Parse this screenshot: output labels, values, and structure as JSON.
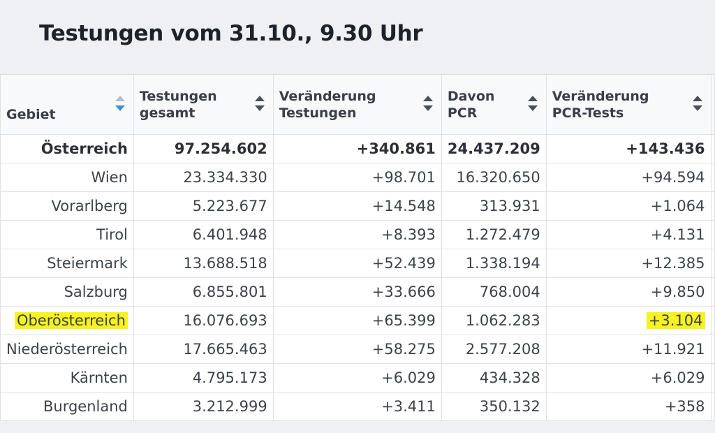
{
  "page": {
    "title": "Testungen vom 31.10., 9.30 Uhr"
  },
  "table": {
    "headers": [
      "Gebiet",
      "Testungen gesamt",
      "Veränderung Testungen",
      "Davon PCR",
      "Veränderung PCR-Tests"
    ],
    "active_sort_column": "Gebiet",
    "highlight_color": "#f7f320",
    "rows": [
      {
        "gebiet": "Österreich",
        "gesamt": "97.254.602",
        "veraenderung": "+340.861",
        "pcr": "24.437.209",
        "pcr_veraenderung": "+143.436",
        "bold": true
      },
      {
        "gebiet": "Wien",
        "gesamt": "23.334.330",
        "veraenderung": "+98.701",
        "pcr": "16.320.650",
        "pcr_veraenderung": "+94.594"
      },
      {
        "gebiet": "Vorarlberg",
        "gesamt": "5.223.677",
        "veraenderung": "+14.548",
        "pcr": "313.931",
        "pcr_veraenderung": "+1.064"
      },
      {
        "gebiet": "Tirol",
        "gesamt": "6.401.948",
        "veraenderung": "+8.393",
        "pcr": "1.272.479",
        "pcr_veraenderung": "+4.131"
      },
      {
        "gebiet": "Steiermark",
        "gesamt": "13.688.518",
        "veraenderung": "+52.439",
        "pcr": "1.338.194",
        "pcr_veraenderung": "+12.385"
      },
      {
        "gebiet": "Salzburg",
        "gesamt": "6.855.801",
        "veraenderung": "+33.666",
        "pcr": "768.004",
        "pcr_veraenderung": "+9.850"
      },
      {
        "gebiet": "Oberösterreich",
        "gesamt": "16.076.693",
        "veraenderung": "+65.399",
        "pcr": "1.062.283",
        "pcr_veraenderung": "+3.104",
        "highlight": true
      },
      {
        "gebiet": "Niederösterreich",
        "gesamt": "17.665.463",
        "veraenderung": "+58.275",
        "pcr": "2.577.208",
        "pcr_veraenderung": "+11.921"
      },
      {
        "gebiet": "Kärnten",
        "gesamt": "4.795.173",
        "veraenderung": "+6.029",
        "pcr": "434.328",
        "pcr_veraenderung": "+6.029"
      },
      {
        "gebiet": "Burgenland",
        "gesamt": "3.212.999",
        "veraenderung": "+3.411",
        "pcr": "350.132",
        "pcr_veraenderung": "+358"
      }
    ]
  }
}
